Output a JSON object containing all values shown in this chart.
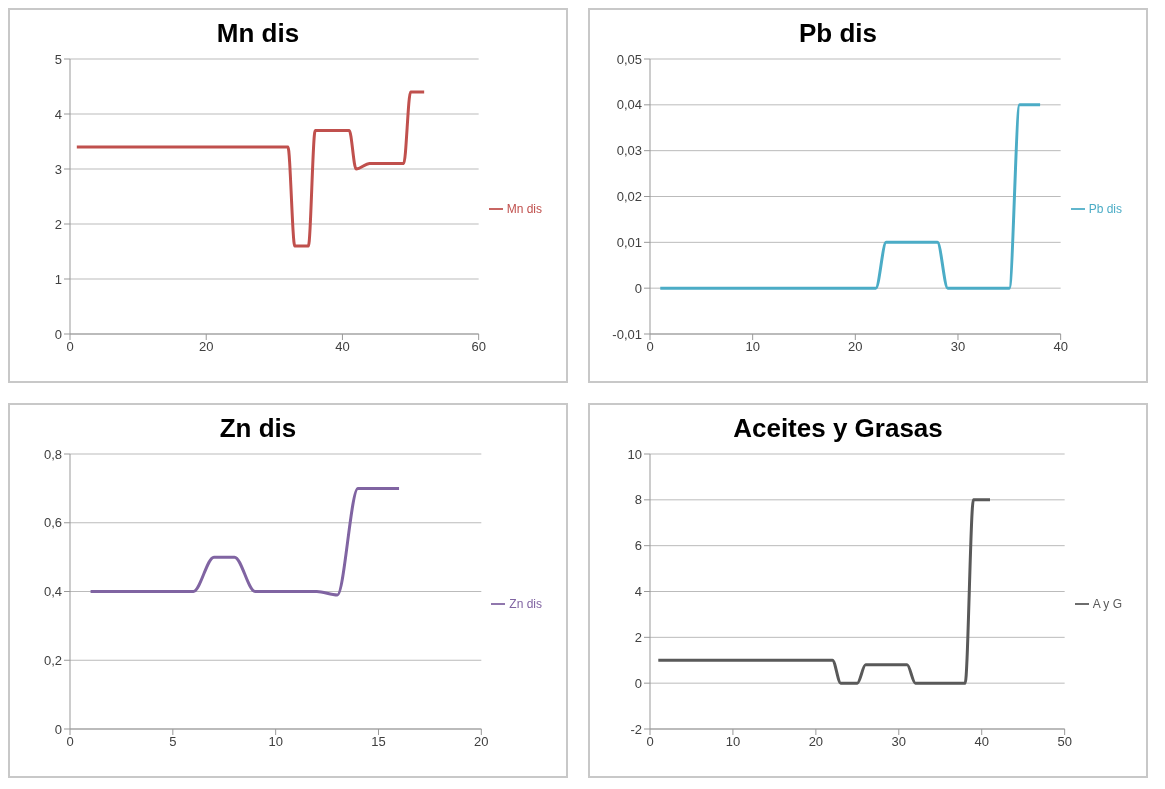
{
  "chart_data": [
    {
      "type": "line",
      "title": "Mn dis",
      "x": [
        1,
        32,
        33,
        35,
        36,
        41,
        42,
        44,
        49,
        50,
        52
      ],
      "series": [
        {
          "name": "Mn dis",
          "color": "#c0504d",
          "values": [
            3.4,
            3.4,
            1.6,
            1.6,
            3.7,
            3.7,
            3.0,
            3.1,
            3.1,
            4.4,
            4.4
          ]
        }
      ],
      "xlim": [
        0,
        60
      ],
      "xticks": [
        0,
        20,
        40,
        60
      ],
      "ylim": [
        0,
        5
      ],
      "yticks": [
        0,
        1,
        2,
        3,
        4,
        5
      ],
      "grid": "y",
      "legend": "right",
      "marker": "none"
    },
    {
      "type": "line",
      "title": "Pb dis",
      "x": [
        1,
        22,
        23,
        28,
        29,
        35,
        36,
        38
      ],
      "series": [
        {
          "name": "Pb dis",
          "color": "#4bacc6",
          "values": [
            0,
            0,
            0.01,
            0.01,
            0,
            0,
            0.04,
            0.04
          ]
        }
      ],
      "xlim": [
        0,
        40
      ],
      "xticks": [
        0,
        10,
        20,
        30,
        40
      ],
      "ylim": [
        -0.01,
        0.05
      ],
      "yticks": [
        {
          "value": -0.01,
          "label": "-0,01"
        },
        0,
        {
          "value": 0.01,
          "label": "0,01"
        },
        {
          "value": 0.02,
          "label": "0,02"
        },
        {
          "value": 0.03,
          "label": "0,03"
        },
        {
          "value": 0.04,
          "label": "0,04"
        },
        {
          "value": 0.05,
          "label": "0,05"
        }
      ],
      "grid": "y",
      "legend": "right",
      "marker": "none"
    },
    {
      "type": "line",
      "title": "Zn dis",
      "x": [
        1,
        2,
        3,
        4,
        5,
        6,
        7,
        8,
        9,
        10,
        11,
        12,
        13,
        14,
        15,
        16
      ],
      "series": [
        {
          "name": "Zn dis",
          "color": "#8064a2",
          "values": [
            0.4,
            0.4,
            0.4,
            0.4,
            0.4,
            0.4,
            0.5,
            0.5,
            0.4,
            0.4,
            0.4,
            0.4,
            0.39,
            0.7,
            0.7,
            0.7
          ]
        }
      ],
      "xlim": [
        0,
        20
      ],
      "xticks": [
        0,
        5,
        10,
        15,
        20
      ],
      "ylim": [
        0,
        0.8
      ],
      "yticks": [
        0,
        {
          "value": 0.2,
          "label": "0,2"
        },
        {
          "value": 0.4,
          "label": "0,4"
        },
        {
          "value": 0.6,
          "label": "0,6"
        },
        {
          "value": 0.8,
          "label": "0,8"
        }
      ],
      "grid": "y",
      "legend": "right",
      "marker": "none"
    },
    {
      "type": "line",
      "title": "Aceites y Grasas",
      "x": [
        1,
        22,
        23,
        25,
        26,
        31,
        32,
        38,
        39,
        41
      ],
      "series": [
        {
          "name": "A y G",
          "color": "#595959",
          "values": [
            1,
            1,
            0,
            0,
            0.8,
            0.8,
            0,
            0,
            8,
            8
          ]
        }
      ],
      "xlim": [
        0,
        50
      ],
      "xticks": [
        0,
        10,
        20,
        30,
        40,
        50
      ],
      "ylim": [
        -2,
        10
      ],
      "yticks": [
        -2,
        0,
        2,
        4,
        6,
        8,
        10
      ],
      "grid": "y",
      "legend": "right",
      "marker": "none"
    }
  ]
}
